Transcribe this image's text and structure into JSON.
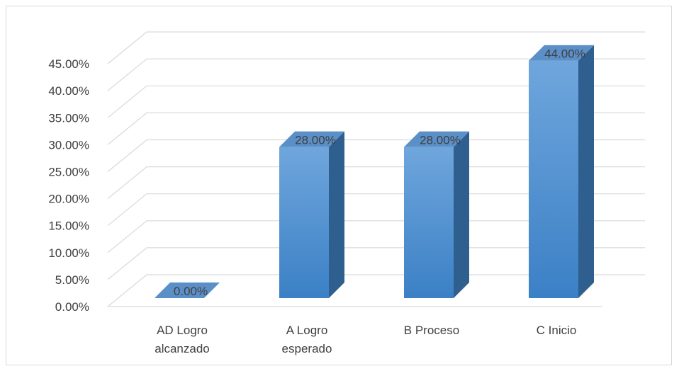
{
  "chart_data": {
    "type": "bar",
    "variant": "3d-column",
    "categories": [
      [
        "AD Logro",
        "alcanzado"
      ],
      [
        "A Logro",
        "esperado"
      ],
      [
        "B Proceso"
      ],
      [
        "C Inicio"
      ]
    ],
    "values": [
      0.0,
      28.0,
      28.0,
      44.0
    ],
    "data_labels": [
      "0.00%",
      "28.00%",
      "28.00%",
      "44.00%"
    ],
    "y_ticks": [
      "0.00%",
      "5.00%",
      "10.00%",
      "15.00%",
      "20.00%",
      "25.00%",
      "30.00%",
      "35.00%",
      "40.00%",
      "45.00%"
    ],
    "ylim": [
      0,
      45
    ],
    "grid": true,
    "legend": "none",
    "colors": {
      "bar_front_top": "#6fa6dc",
      "bar_front_bottom": "#3b80c6",
      "bar_side": "#2e5f8f",
      "bar_top": "#5b8fc7",
      "grid": "#d9d9d9",
      "text": "#404040"
    }
  }
}
